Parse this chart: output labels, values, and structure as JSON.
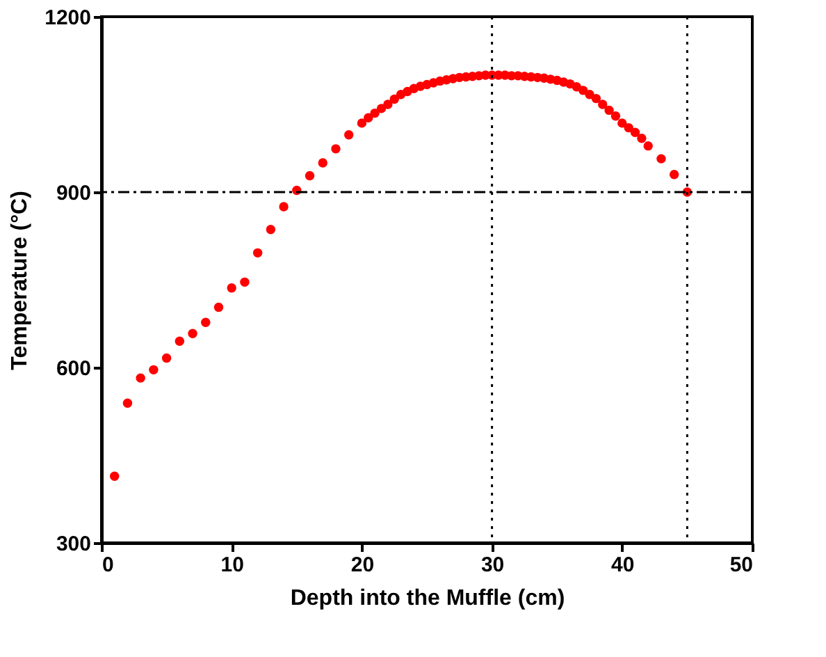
{
  "chart_data": {
    "type": "scatter",
    "xlabel": "Depth into the Muffle (cm)",
    "ylabel": "Temperature (°C)",
    "x": [
      1,
      2,
      3,
      4,
      5,
      6,
      7,
      8,
      9,
      10,
      11,
      12,
      13,
      14,
      15,
      16,
      17,
      18,
      19,
      20,
      20.5,
      21,
      21.5,
      22,
      22.5,
      23,
      23.5,
      24,
      24.5,
      25,
      25.5,
      26,
      26.5,
      27,
      27.5,
      28,
      28.5,
      29,
      29.5,
      30,
      30.5,
      31,
      31.5,
      32,
      32.5,
      33,
      33.5,
      34,
      34.5,
      35,
      35.5,
      36,
      36.5,
      37,
      37.5,
      38,
      38.5,
      39,
      39.5,
      40,
      40.5,
      41,
      41.5,
      42,
      43,
      44,
      45
    ],
    "series": [
      {
        "color": "#ff0000",
        "values": [
          414,
          539,
          582,
          596,
          616,
          645,
          658,
          677,
          703,
          736,
          746,
          796,
          836,
          875,
          903,
          928,
          950,
          974,
          998,
          1018,
          1027,
          1035,
          1043,
          1050,
          1059,
          1067,
          1072,
          1077,
          1081,
          1084,
          1087,
          1090,
          1092,
          1094,
          1096,
          1097,
          1098,
          1099,
          1100,
          1100,
          1100,
          1100,
          1099,
          1099,
          1098,
          1097,
          1096,
          1095,
          1093,
          1091,
          1088,
          1085,
          1080,
          1074,
          1067,
          1060,
          1050,
          1040,
          1030,
          1018,
          1010,
          1002,
          992,
          979,
          957,
          930,
          900
        ]
      }
    ],
    "xlim": [
      0,
      50
    ],
    "ylim": [
      300,
      1200
    ],
    "xticks": [
      0,
      10,
      20,
      30,
      40,
      50
    ],
    "yticks": [
      300,
      600,
      900,
      1200
    ],
    "grid": false,
    "marker": "circle",
    "ref_lines": [
      {
        "axis": "y",
        "value": 900,
        "line_style": "dashdot",
        "color": "#000000"
      },
      {
        "axis": "x",
        "value": 30,
        "line_style": "dotted",
        "color": "#000000"
      },
      {
        "axis": "x",
        "value": 45,
        "line_style": "dotted",
        "color": "#000000"
      }
    ]
  }
}
